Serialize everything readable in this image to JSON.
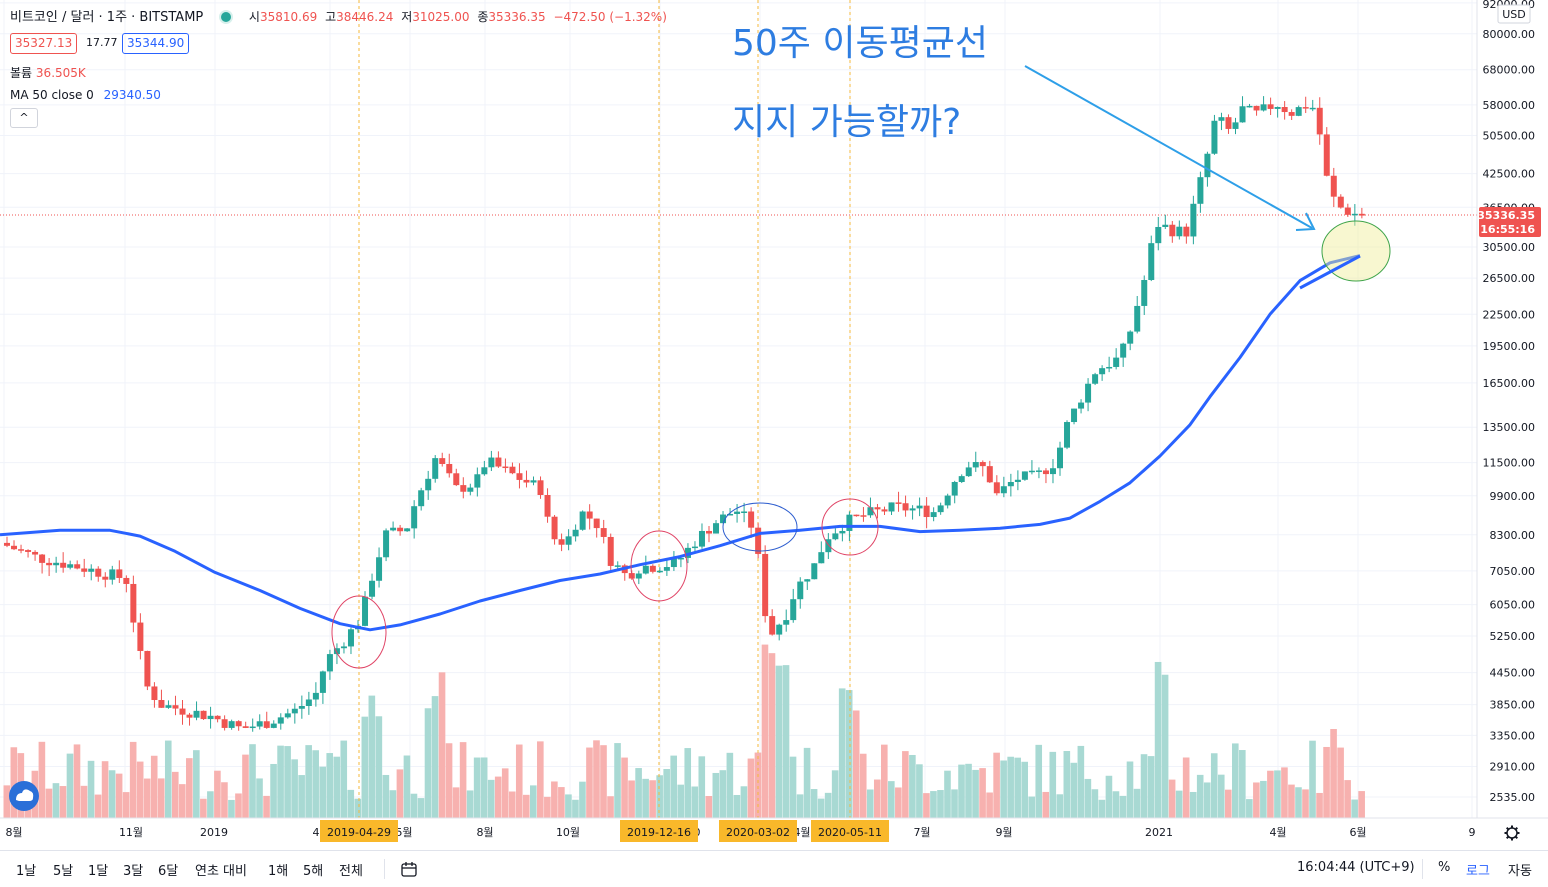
{
  "header": {
    "symbol": "비트코인 / 달러 · 1주 · BITSTAMP",
    "open_label": "시",
    "open": "35810.69",
    "high_label": "고",
    "high": "38446.24",
    "low_label": "저",
    "low": "31025.00",
    "close_label": "종",
    "close": "35336.35",
    "change": "−472.50 (−1.32%)",
    "bid": "35327.13",
    "spread": "17.77",
    "ask": "35344.90",
    "volume_label": "볼륨",
    "volume_value": "36.505K",
    "ma_label": "MA 50 close 0",
    "ma_value": "29340.50",
    "collapse_symbol": "^"
  },
  "annotations": {
    "title_line1": "50주 이동평균선",
    "title_line2": "지지 가능할까?",
    "date_markers": [
      "2019-04-29",
      "2019-12-16",
      "2020-03-02",
      "2020-05-11"
    ]
  },
  "price_axis": {
    "currency": "USD",
    "ticks": [
      "92000.00",
      "80000.00",
      "68000.00",
      "58000.00",
      "50500.00",
      "42500.00",
      "36500.00",
      "30500.00",
      "26500.00",
      "22500.00",
      "19500.00",
      "16500.00",
      "13500.00",
      "11500.00",
      "9900.00",
      "8300.00",
      "7050.00",
      "6050.00",
      "5250.00",
      "4450.00",
      "3850.00",
      "3350.00",
      "2910.00",
      "2535.00"
    ],
    "last_price": "35336.35",
    "countdown": "16:55:16"
  },
  "time_axis": {
    "labels": [
      "8월",
      "11월",
      "2019",
      "4",
      "5월",
      "8월",
      "10월",
      "0",
      "4월",
      "7월",
      "9월",
      "2021",
      "4월",
      "6월",
      "9"
    ]
  },
  "bottom_bar": {
    "ranges": [
      "1날",
      "5날",
      "1달",
      "3달",
      "6달",
      "연초 대비",
      "1해",
      "5해",
      "전체"
    ],
    "clock": "16:04:44 (UTC+9)",
    "percent": "%",
    "log": "로그",
    "auto": "자동"
  },
  "colors": {
    "up": "#26a69a",
    "down": "#ef5350",
    "vol_up": "#a8d9d3",
    "vol_down": "#f7b1af",
    "ma": "#2962ff",
    "annotation": "#2e7de1",
    "marker_bg": "#f9b82a"
  },
  "chart_data": {
    "type": "candlestick",
    "interval": "1주",
    "series": [
      {
        "name": "MA 50 close 0",
        "type": "line",
        "last_value": 29340.5
      },
      {
        "name": "볼륨",
        "type": "bar",
        "last_value": "36.505K"
      }
    ],
    "ohlc_last": {
      "open": 35810.69,
      "high": 38446.24,
      "low": 31025.0,
      "close": 35336.35
    },
    "ma_path": [
      [
        0,
        8300
      ],
      [
        60,
        8470
      ],
      [
        110,
        8470
      ],
      [
        140,
        8250
      ],
      [
        175,
        7700
      ],
      [
        215,
        7000
      ],
      [
        260,
        6450
      ],
      [
        300,
        5950
      ],
      [
        340,
        5550
      ],
      [
        370,
        5400
      ],
      [
        400,
        5520
      ],
      [
        440,
        5800
      ],
      [
        480,
        6150
      ],
      [
        520,
        6450
      ],
      [
        560,
        6750
      ],
      [
        600,
        6950
      ],
      [
        640,
        7250
      ],
      [
        680,
        7520
      ],
      [
        720,
        7900
      ],
      [
        760,
        8350
      ],
      [
        800,
        8470
      ],
      [
        840,
        8620
      ],
      [
        880,
        8620
      ],
      [
        920,
        8420
      ],
      [
        960,
        8470
      ],
      [
        1000,
        8550
      ],
      [
        1040,
        8700
      ],
      [
        1070,
        8950
      ],
      [
        1100,
        9650
      ],
      [
        1130,
        10500
      ],
      [
        1160,
        11850
      ],
      [
        1190,
        13650
      ],
      [
        1210,
        15500
      ],
      [
        1240,
        18500
      ],
      [
        1270,
        22500
      ],
      [
        1300,
        26200
      ],
      [
        1330,
        28400
      ],
      [
        1360,
        29340.5
      ]
    ],
    "price_ticks": [
      92000,
      80000,
      68000,
      58000,
      50500,
      42500,
      36500,
      30500,
      26500,
      22500,
      19500,
      16500,
      13500,
      11500,
      9900,
      8300,
      7050,
      6050,
      5250,
      4450,
      3850,
      3350,
      2910,
      2535
    ]
  }
}
